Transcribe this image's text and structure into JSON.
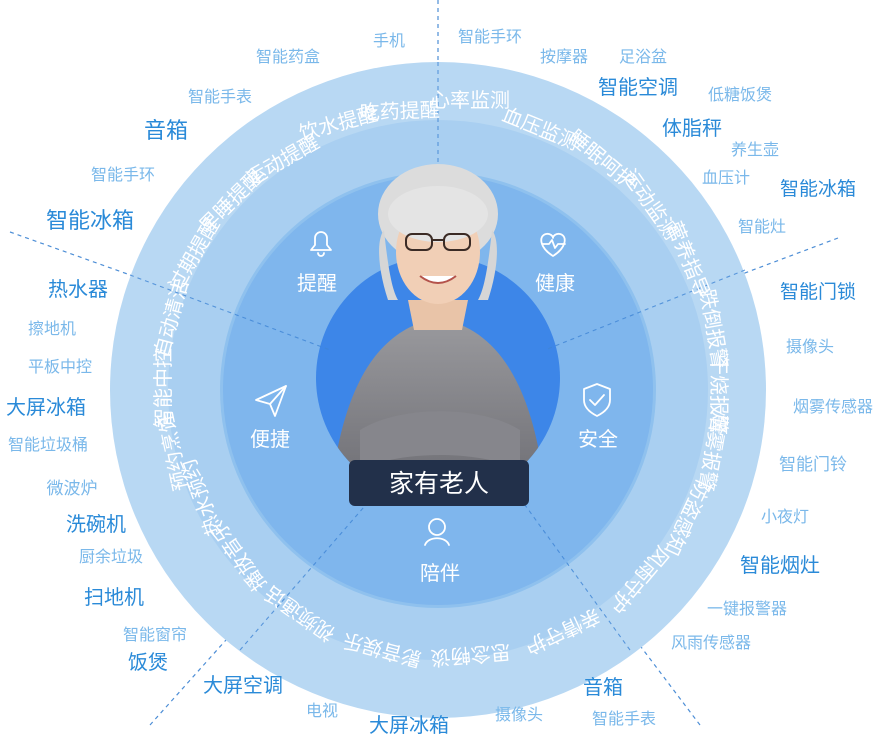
{
  "title": "家有老人",
  "categories": [
    {
      "key": "reminder",
      "label": "提醒",
      "icon": "bell-icon"
    },
    {
      "key": "health",
      "label": "健康",
      "icon": "heart-pulse-icon"
    },
    {
      "key": "safety",
      "label": "安全",
      "icon": "shield-check-icon"
    },
    {
      "key": "companion",
      "label": "陪伴",
      "icon": "person-icon"
    },
    {
      "key": "convenience",
      "label": "便捷",
      "icon": "paper-plane-icon"
    }
  ],
  "functions": [
    "心率监测",
    "血压监测",
    "睡眠呵护",
    "运动监测",
    "营养指导",
    "跌倒报警",
    "干烧报警",
    "烟雾报警",
    "防盗感知",
    "风雨守护",
    "亲情守护",
    "思念畅谈",
    "影音娱乐",
    "视频通话",
    "播放音乐",
    "热水预约",
    "预约烹饪",
    "智能中控",
    "自动清洁",
    "过期提醒",
    "早睡提醒",
    "运动提醒",
    "饮水提醒",
    "吃药提醒"
  ],
  "devices": [
    "智能手环",
    "按摩器",
    "足浴盆",
    "智能空调",
    "低糖饭煲",
    "体脂秤",
    "养生壶",
    "血压计",
    "智能冰箱",
    "智能灶",
    "智能门锁",
    "摄像头",
    "烟雾传感器",
    "智能门铃",
    "小夜灯",
    "智能烟灶",
    "一键报警器",
    "风雨传感器",
    "音箱",
    "智能手表",
    "摄像头",
    "大屏冰箱",
    "电视",
    "大屏空调",
    "饭煲",
    "智能窗帘",
    "扫地机",
    "厨余垃圾",
    "洗碗机",
    "微波炉",
    "智能垃圾桶",
    "大屏冰箱",
    "平板中控",
    "擦地机",
    "热水器",
    "智能冰箱",
    "智能手环",
    "音箱",
    "智能手表",
    "智能药盒",
    "手机"
  ],
  "colors": {
    "outer_ring": "#b8d8f3",
    "middle_ring": "#8fc1ee",
    "inner_disc": "#5b9ae6",
    "core_disc": "#3d86e8",
    "label_box": "#22304a",
    "device_text": "#4d9fe0"
  }
}
